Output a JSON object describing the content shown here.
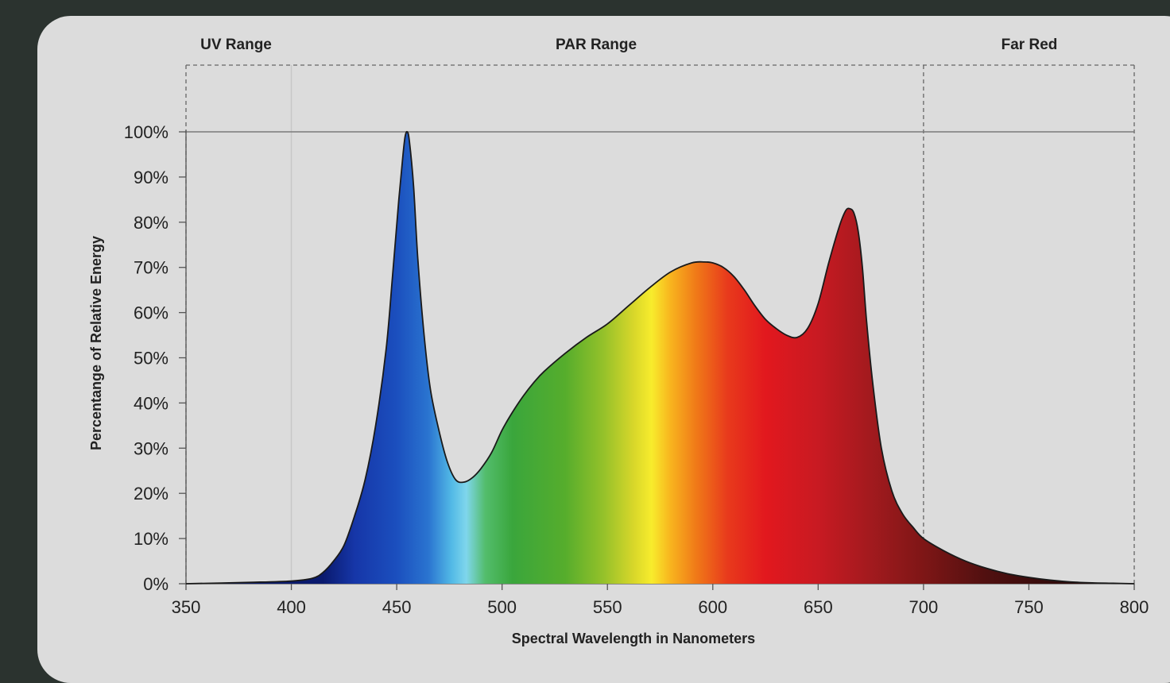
{
  "chart_data": {
    "type": "area",
    "title": "",
    "xlabel": "Spectral Wavelength in Nanometers",
    "ylabel": "Percentange of Relative Energy",
    "xlim": [
      350,
      800
    ],
    "ylim": [
      0,
      100
    ],
    "x_ticks": [
      350,
      400,
      450,
      500,
      550,
      600,
      650,
      700,
      750,
      800
    ],
    "x_tick_labels": [
      "350",
      "400",
      "450",
      "500",
      "550",
      "600",
      "650",
      "700",
      "750",
      "800"
    ],
    "y_ticks": [
      0,
      10,
      20,
      30,
      40,
      50,
      60,
      70,
      80,
      90,
      100
    ],
    "y_tick_labels": [
      "0%",
      "10%",
      "20%",
      "30%",
      "40%",
      "50%",
      "60%",
      "70%",
      "80%",
      "90%",
      "100%"
    ],
    "regions": [
      {
        "label": "UV Range",
        "from": 350,
        "to": 400
      },
      {
        "label": "PAR Range",
        "from": 400,
        "to": 700
      },
      {
        "label": "Far Red",
        "from": 700,
        "to": 800
      }
    ],
    "series": [
      {
        "x": [
          350,
          380,
          400,
          410,
          415,
          420,
          425,
          430,
          435,
          440,
          445,
          448,
          451,
          453,
          454,
          455,
          456,
          458,
          460,
          463,
          466,
          470,
          474,
          478,
          482,
          486,
          490,
          495,
          500,
          505,
          510,
          515,
          520,
          530,
          540,
          550,
          560,
          570,
          580,
          590,
          596,
          600,
          605,
          610,
          615,
          620,
          625,
          630,
          635,
          640,
          645,
          650,
          655,
          660,
          663,
          665,
          667,
          669,
          671,
          673,
          676,
          680,
          685,
          690,
          695,
          700,
          710,
          720,
          730,
          740,
          750,
          760,
          770,
          780,
          790,
          800
        ],
        "values": [
          0,
          0.3,
          0.6,
          1.2,
          2.5,
          5,
          8.5,
          15,
          23,
          35,
          52,
          68,
          85,
          95,
          99,
          100,
          98,
          88,
          72,
          55,
          43,
          34,
          27,
          23,
          22.5,
          23.5,
          25.5,
          29,
          34,
          38,
          41.5,
          44.5,
          47,
          51,
          54.5,
          57.5,
          61.5,
          65.5,
          69,
          71,
          71.2,
          71,
          70,
          68,
          65,
          61.5,
          58.5,
          56.5,
          55,
          54.5,
          56.5,
          62,
          71,
          79,
          82.5,
          83,
          82,
          78,
          70,
          58,
          44,
          30,
          20.5,
          15.5,
          12.5,
          10,
          7.2,
          5,
          3.4,
          2.2,
          1.4,
          0.8,
          0.4,
          0.2,
          0.1,
          0
        ]
      }
    ],
    "spectrum_colors": [
      {
        "nm": 415,
        "color": "#0a1a6e"
      },
      {
        "nm": 430,
        "color": "#1636a8"
      },
      {
        "nm": 450,
        "color": "#1b4fbe"
      },
      {
        "nm": 465,
        "color": "#2a74d0"
      },
      {
        "nm": 476,
        "color": "#52b9e6"
      },
      {
        "nm": 483,
        "color": "#7fd6ec"
      },
      {
        "nm": 492,
        "color": "#53bd6c"
      },
      {
        "nm": 505,
        "color": "#3aa63c"
      },
      {
        "nm": 530,
        "color": "#56ad2c"
      },
      {
        "nm": 548,
        "color": "#94c12a"
      },
      {
        "nm": 562,
        "color": "#d6d62a"
      },
      {
        "nm": 571,
        "color": "#f8ec2c"
      },
      {
        "nm": 580,
        "color": "#f8b41e"
      },
      {
        "nm": 592,
        "color": "#f07a18"
      },
      {
        "nm": 607,
        "color": "#e83a1c"
      },
      {
        "nm": 625,
        "color": "#e2181e"
      },
      {
        "nm": 650,
        "color": "#c81a22"
      },
      {
        "nm": 675,
        "color": "#a21a1e"
      },
      {
        "nm": 700,
        "color": "#7e1616"
      },
      {
        "nm": 730,
        "color": "#501010"
      },
      {
        "nm": 770,
        "color": "#2c0a0a"
      },
      {
        "nm": 800,
        "color": "#1a0606"
      }
    ],
    "grid": false,
    "line_color": "#1a1a1a",
    "axis_color": "#555555"
  }
}
